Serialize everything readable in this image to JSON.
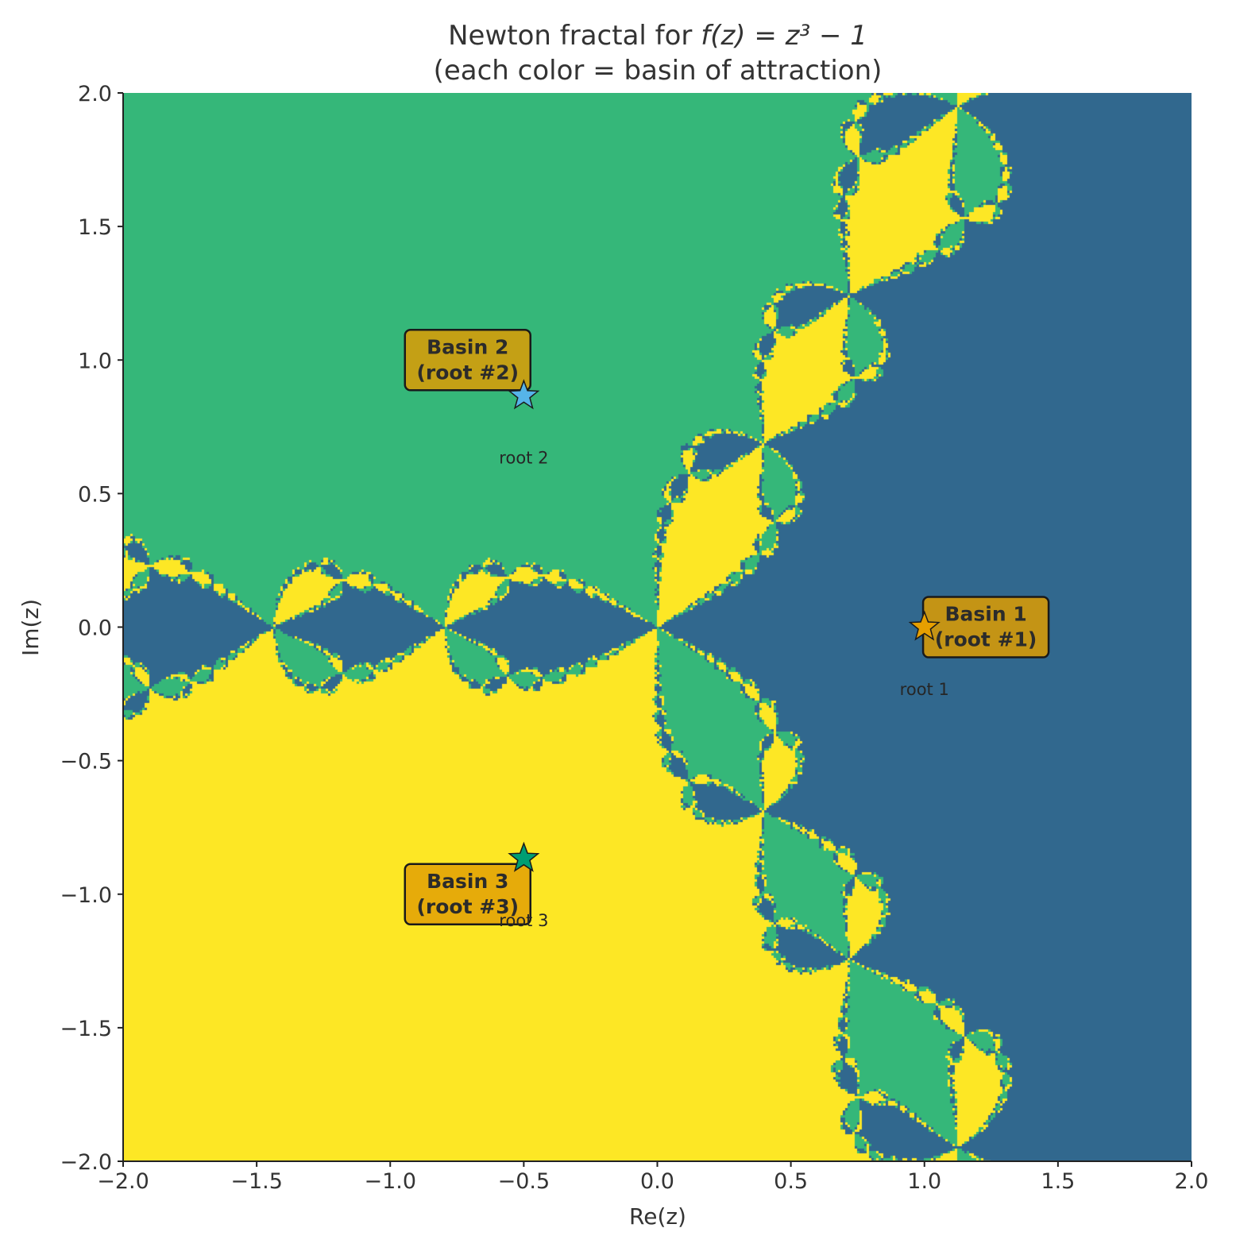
{
  "chart_data": {
    "type": "heatmap",
    "title_line1_prefix": "Newton fractal for ",
    "title_line1_math": "f(z) = z³ − 1",
    "title_line2": "(each color = basin of attraction)",
    "xlabel": "Re(z)",
    "ylabel": "Im(z)",
    "xlim": [
      -2.0,
      2.0
    ],
    "ylim": [
      -2.0,
      2.0
    ],
    "xticks": [
      "−2.0",
      "−1.5",
      "−1.0",
      "−0.5",
      "0.0",
      "0.5",
      "1.0",
      "1.5",
      "2.0"
    ],
    "yticks": [
      "2.0",
      "1.5",
      "1.0",
      "0.5",
      "0.0",
      "−0.5",
      "−1.0",
      "−1.5",
      "−2.0"
    ],
    "grid": false,
    "function": "z^3 - 1",
    "basin_colors": {
      "root_1": "#31688e",
      "root_2": "#35b779",
      "root_3": "#fde725"
    },
    "roots": [
      {
        "name": "root 1",
        "re": 1.0,
        "im": 0.0,
        "marker_color": "#e69f00"
      },
      {
        "name": "root 2",
        "re": -0.5,
        "im": 0.866,
        "marker_color": "#56b4e9"
      },
      {
        "name": "root 3",
        "re": -0.5,
        "im": -0.866,
        "marker_color": "#009e73"
      }
    ],
    "basin_labels": [
      {
        "line1": "Basin 1",
        "line2": "(root #1)",
        "re": 1.23,
        "im": 0.0,
        "box_color": "#c49415"
      },
      {
        "line1": "Basin 2",
        "line2": "(root #2)",
        "re": -0.71,
        "im": 1.0,
        "box_color": "#c4a015"
      },
      {
        "line1": "Basin 3",
        "line2": "(root #3)",
        "re": -0.71,
        "im": -1.0,
        "box_color": "#e6ab0a"
      }
    ],
    "root_label_offset_im": -0.23
  }
}
